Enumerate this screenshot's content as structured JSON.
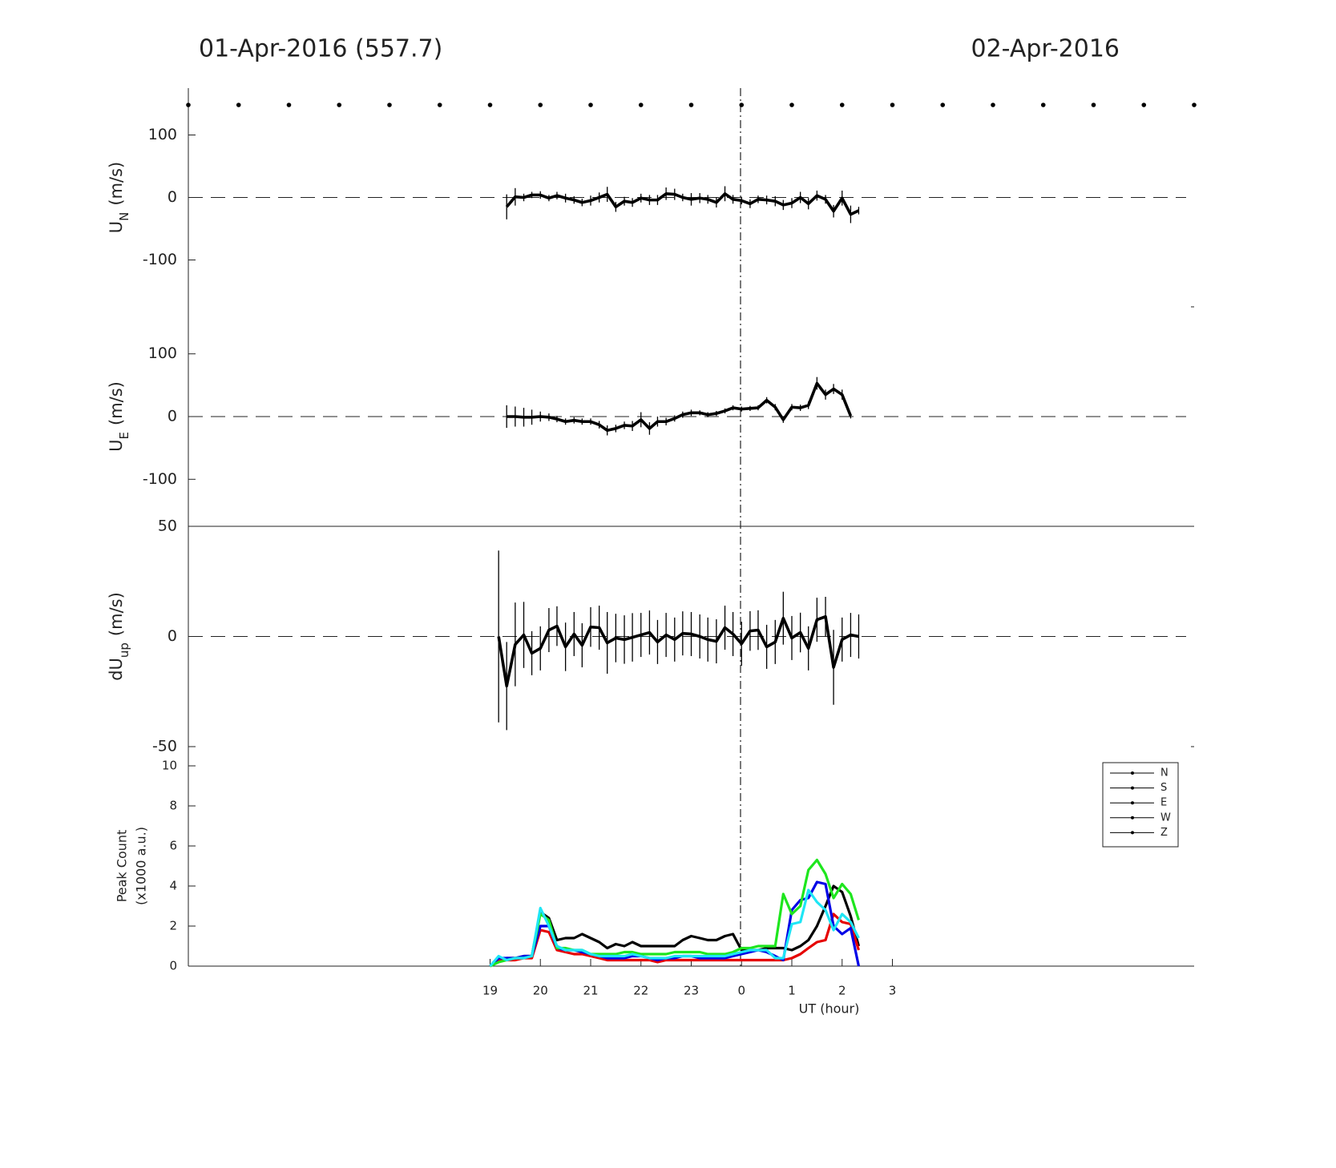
{
  "chart_data": [
    {
      "type": "line",
      "title": "01-Apr-2016 (557.7)",
      "title_right": "02-Apr-2016",
      "ylabel": {
        "main": "U",
        "sub": "N",
        "unit": "(m/s)"
      },
      "xlim": [
        13,
        33
      ],
      "ylim": [
        -175,
        175
      ],
      "yticks": [
        -100,
        0,
        100
      ],
      "zero_line": true,
      "markers_x": [
        13,
        14,
        15,
        16,
        17,
        18,
        19,
        20,
        21,
        22,
        23,
        24,
        25,
        26,
        27,
        28,
        29,
        30,
        31,
        32,
        33
      ],
      "series": [
        {
          "color": "#000000",
          "x": [
            19.33,
            19.5,
            19.67,
            19.83,
            20,
            20.17,
            20.33,
            20.5,
            20.67,
            20.83,
            21,
            21.17,
            21.33,
            21.5,
            21.67,
            21.83,
            22,
            22.17,
            22.33,
            22.5,
            22.67,
            22.83,
            23,
            23.17,
            23.33,
            23.5,
            23.67,
            23.83,
            24,
            24.17,
            24.33,
            24.5,
            24.67,
            24.83,
            25,
            25.17,
            25.33,
            25.5,
            25.67,
            25.83,
            26,
            26.17,
            26.33
          ],
          "values": [
            -15,
            1,
            0,
            4,
            4,
            -1,
            3,
            -1,
            -4,
            -8,
            -5,
            0,
            5,
            -15,
            -6,
            -8,
            -1,
            -4,
            -4,
            6,
            5,
            0,
            -3,
            -1,
            -3,
            -8,
            6,
            -3,
            -5,
            -10,
            -3,
            -4,
            -6,
            -12,
            -9,
            0,
            -10,
            3,
            -3,
            -22,
            -1,
            -27,
            -21
          ],
          "errors": [
            20,
            14,
            6,
            5,
            6,
            5,
            6,
            7,
            6,
            6,
            8,
            8,
            12,
            8,
            7,
            7,
            7,
            8,
            8,
            10,
            9,
            6,
            10,
            8,
            7,
            8,
            12,
            7,
            6,
            7,
            6,
            7,
            8,
            8,
            8,
            9,
            9,
            8,
            7,
            10,
            12,
            14,
            6
          ]
        }
      ]
    },
    {
      "type": "line",
      "ylabel": {
        "main": "U",
        "sub": "E",
        "unit": "(m/s)"
      },
      "xlim": [
        13,
        33
      ],
      "ylim": [
        -175,
        175
      ],
      "yticks": [
        -100,
        0,
        100
      ],
      "zero_line": true,
      "series": [
        {
          "color": "#000000",
          "x": [
            19.33,
            19.5,
            19.67,
            19.83,
            20,
            20.17,
            20.33,
            20.5,
            20.67,
            20.83,
            21,
            21.17,
            21.33,
            21.5,
            21.67,
            21.83,
            22,
            22.17,
            22.33,
            22.5,
            22.67,
            22.83,
            23,
            23.17,
            23.33,
            23.5,
            23.67,
            23.83,
            24,
            24.17,
            24.33,
            24.5,
            24.67,
            24.83,
            25,
            25.17,
            25.33,
            25.5,
            25.67,
            25.83,
            26,
            26.17
          ],
          "values": [
            0,
            0,
            -1,
            -1,
            0,
            -1,
            -4,
            -8,
            -6,
            -8,
            -8,
            -13,
            -22,
            -19,
            -14,
            -15,
            -5,
            -19,
            -8,
            -8,
            -3,
            3,
            6,
            6,
            3,
            5,
            9,
            14,
            12,
            13,
            14,
            26,
            15,
            -5,
            15,
            14,
            18,
            53,
            35,
            44,
            35,
            1
          ],
          "errors": [
            18,
            16,
            15,
            12,
            8,
            6,
            5,
            5,
            5,
            5,
            5,
            6,
            8,
            6,
            6,
            8,
            12,
            10,
            8,
            6,
            5,
            5,
            5,
            4,
            4,
            4,
            4,
            4,
            4,
            4,
            4,
            5,
            5,
            5,
            5,
            5,
            6,
            10,
            8,
            8,
            8,
            4
          ]
        }
      ]
    },
    {
      "type": "line",
      "ylabel": {
        "main": "dU",
        "sub": "up",
        "unit": "(m/s)"
      },
      "xlim": [
        13,
        33
      ],
      "ylim": [
        -50,
        50
      ],
      "yticks": [
        -50,
        0,
        50
      ],
      "zero_line": true,
      "series": [
        {
          "color": "#000000",
          "x": [
            19.17,
            19.33,
            19.5,
            19.67,
            19.83,
            20,
            20.17,
            20.33,
            20.5,
            20.67,
            20.83,
            21,
            21.17,
            21.33,
            21.5,
            21.67,
            21.83,
            22,
            22.17,
            22.33,
            22.5,
            22.67,
            22.83,
            23,
            23.17,
            23.33,
            23.5,
            23.67,
            23.83,
            24,
            24.17,
            24.33,
            24.5,
            24.67,
            24.83,
            25,
            25.17,
            25.33,
            25.5,
            25.67,
            25.83,
            26,
            26.17,
            26.33
          ],
          "values": [
            0,
            -22.5,
            -3.6,
            0.7,
            -7.6,
            -5.4,
            2.9,
            4.7,
            -4.7,
            1.1,
            -4,
            4.3,
            4,
            -2.9,
            -0.7,
            -1.4,
            -0.4,
            0.7,
            1.8,
            -2.5,
            0.7,
            -1.4,
            1.4,
            1.1,
            0,
            -1.4,
            -2.2,
            4,
            1.1,
            -3.3,
            2.5,
            2.9,
            -4.7,
            -2.5,
            8.3,
            -0.7,
            1.8,
            -5.4,
            7.6,
            9,
            -14,
            -1.4,
            0.7,
            0
          ],
          "errors": [
            39,
            20,
            19,
            15,
            10,
            10,
            10,
            9,
            11,
            10,
            10,
            9,
            10,
            14,
            11,
            11,
            11,
            10,
            10,
            10,
            10,
            10,
            10,
            10,
            10,
            10,
            10,
            10,
            10,
            10,
            9,
            9,
            10,
            10,
            12,
            10,
            9,
            10,
            10,
            9,
            17,
            10,
            10,
            10
          ]
        }
      ]
    },
    {
      "type": "line",
      "ylabel": {
        "lines": [
          "Peak Count",
          "(x1000 a.u.)"
        ]
      },
      "xlabel": "UT (hour)",
      "xlim": [
        13,
        33
      ],
      "ylim": [
        0,
        10
      ],
      "yticks": [
        0,
        2,
        4,
        6,
        8,
        10
      ],
      "zero_line": true,
      "xticks": [
        19,
        20,
        21,
        22,
        23,
        {
          "value": 24,
          "label": "0"
        },
        {
          "value": 25,
          "label": "1"
        },
        {
          "value": 26,
          "label": "2"
        },
        {
          "value": 27,
          "label": "3"
        }
      ],
      "legend": "upper right",
      "legend_color": "#000000",
      "x": [
        19,
        19.17,
        19.33,
        19.5,
        19.67,
        19.83,
        20,
        20.17,
        20.33,
        20.5,
        20.67,
        20.83,
        21,
        21.17,
        21.33,
        21.5,
        21.67,
        21.83,
        22,
        22.17,
        22.33,
        22.5,
        22.67,
        22.83,
        23,
        23.17,
        23.33,
        23.5,
        23.67,
        23.83,
        24,
        24.17,
        24.33,
        24.5,
        24.67,
        24.83,
        25,
        25.17,
        25.33,
        25.5,
        25.67,
        25.83,
        26,
        26.17,
        26.33
      ],
      "series": [
        {
          "name": "N",
          "color": "#000000",
          "values": [
            0,
            0.3,
            0.4,
            0.4,
            0.5,
            0.5,
            2.7,
            2.4,
            1.3,
            1.4,
            1.4,
            1.6,
            1.4,
            1.2,
            0.9,
            1.1,
            1.0,
            1.2,
            1.0,
            1.0,
            1.0,
            1.0,
            1.0,
            1.3,
            1.5,
            1.4,
            1.3,
            1.3,
            1.5,
            1.6,
            0.8,
            0.8,
            0.8,
            0.9,
            0.9,
            0.9,
            0.8,
            1.0,
            1.3,
            2.0,
            3.0,
            4.0,
            3.7,
            2.5,
            1.0
          ]
        },
        {
          "name": "S",
          "color": "#e60000",
          "values": [
            0,
            0.3,
            0.3,
            0.3,
            0.4,
            0.4,
            1.8,
            1.7,
            0.8,
            0.7,
            0.6,
            0.6,
            0.5,
            0.4,
            0.3,
            0.3,
            0.3,
            0.3,
            0.3,
            0.3,
            0.2,
            0.3,
            0.3,
            0.3,
            0.3,
            0.3,
            0.3,
            0.3,
            0.3,
            0.3,
            0.3,
            0.3,
            0.3,
            0.3,
            0.3,
            0.3,
            0.4,
            0.6,
            0.9,
            1.2,
            1.3,
            2.6,
            2.2,
            2.1,
            0.8
          ]
        },
        {
          "name": "E",
          "color": "#0000e6",
          "values": [
            0,
            0.4,
            0.4,
            0.4,
            0.5,
            0.5,
            2.0,
            2.0,
            0.9,
            0.8,
            0.8,
            0.7,
            0.6,
            0.5,
            0.4,
            0.4,
            0.4,
            0.5,
            0.5,
            0.4,
            0.3,
            0.4,
            0.4,
            0.5,
            0.5,
            0.4,
            0.4,
            0.4,
            0.4,
            0.5,
            0.6,
            0.7,
            0.8,
            0.7,
            0.5,
            0.3,
            2.8,
            3.3,
            3.4,
            4.2,
            4.1,
            2.0,
            1.6,
            1.9,
            0
          ]
        },
        {
          "name": "W",
          "color": "#1ee61e",
          "values": [
            0,
            0.2,
            0.3,
            0.4,
            0.4,
            0.5,
            2.6,
            2.3,
            0.9,
            0.9,
            0.8,
            0.8,
            0.6,
            0.6,
            0.6,
            0.6,
            0.7,
            0.7,
            0.6,
            0.6,
            0.6,
            0.6,
            0.7,
            0.7,
            0.7,
            0.7,
            0.6,
            0.6,
            0.6,
            0.7,
            0.9,
            0.9,
            1.0,
            1.0,
            1.0,
            3.6,
            2.6,
            3.0,
            4.8,
            5.3,
            4.6,
            3.4,
            4.1,
            3.6,
            2.3
          ]
        },
        {
          "name": "Z",
          "color": "#1ee6f5",
          "values": [
            0,
            0.5,
            0.3,
            0.4,
            0.4,
            0.5,
            2.9,
            2.0,
            1.0,
            0.8,
            0.8,
            0.8,
            0.6,
            0.5,
            0.5,
            0.5,
            0.5,
            0.6,
            0.5,
            0.4,
            0.4,
            0.4,
            0.5,
            0.5,
            0.5,
            0.5,
            0.5,
            0.5,
            0.5,
            0.6,
            0.7,
            0.8,
            0.8,
            0.8,
            0.4,
            0.4,
            2.1,
            2.2,
            3.8,
            3.2,
            2.8,
            1.8,
            2.6,
            2.2,
            1.4
          ]
        }
      ]
    }
  ]
}
